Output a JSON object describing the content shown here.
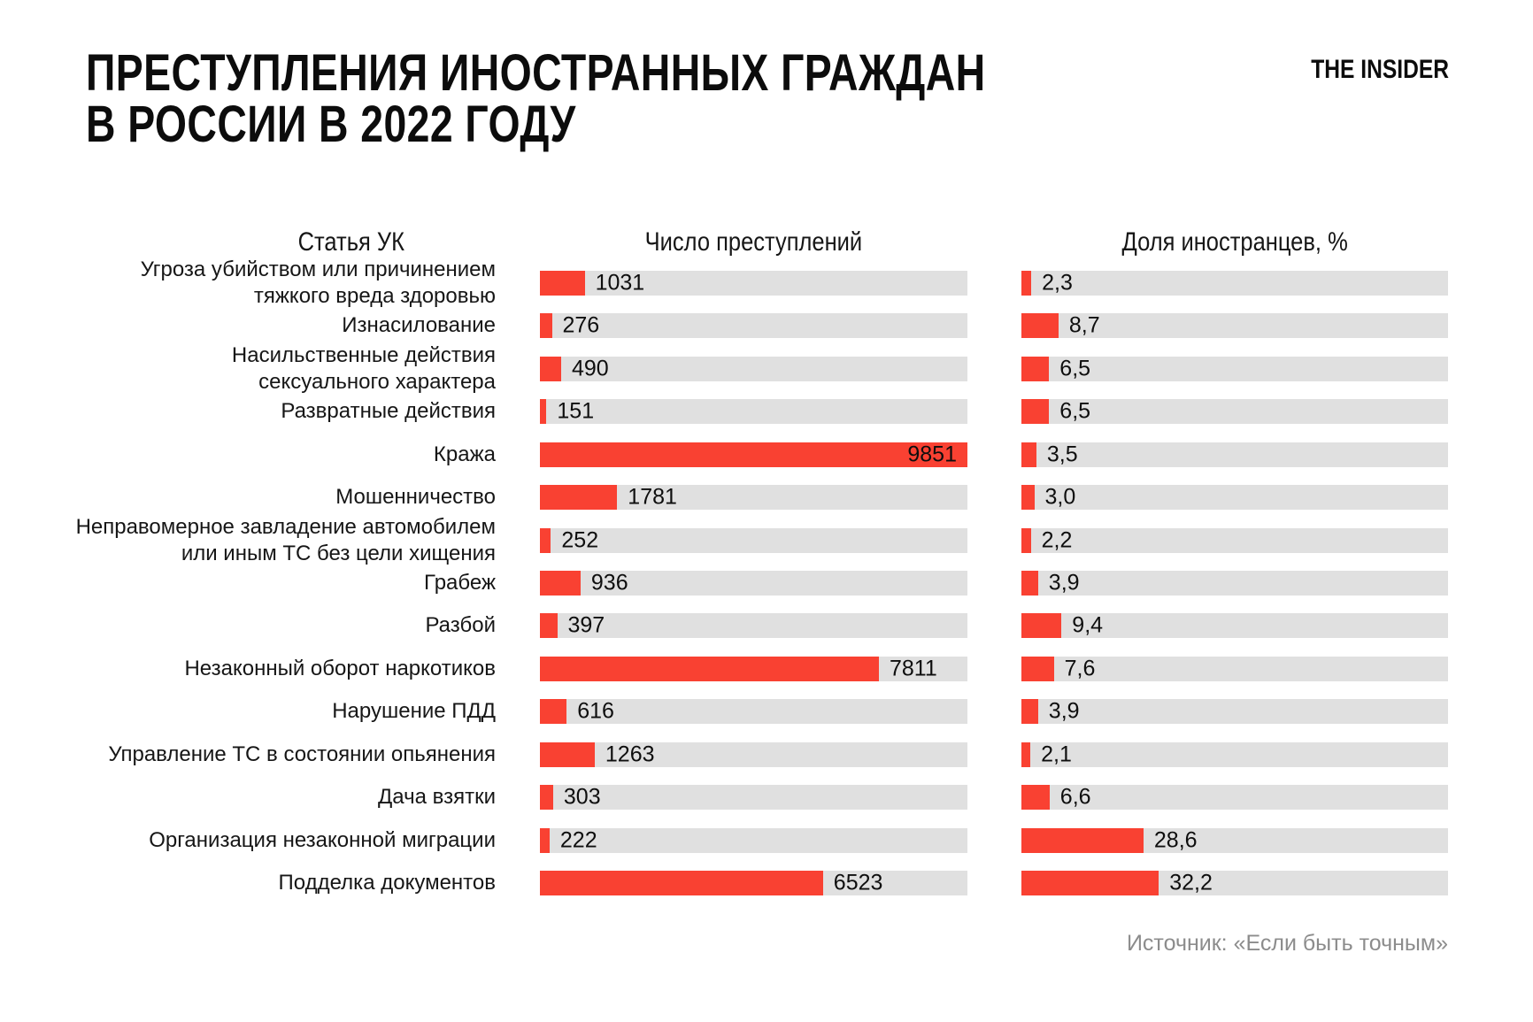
{
  "page": {
    "title_line1": "ПРЕСТУПЛЕНИЯ ИНОСТРАННЫХ ГРАЖДАН",
    "title_line2": "В РОССИИ В 2022 ГОДУ",
    "logo": "THE INSIDER",
    "source": "Источник: «Если быть точным»"
  },
  "columns": {
    "article": "Статья УК",
    "count": "Число преступлений",
    "share": "Доля иностранцев, %"
  },
  "colors": {
    "bar_red": "#F94132",
    "track_gray": "#E0E0E0",
    "text_black": "#0e0e0e",
    "source_gray": "#8C8C8C"
  },
  "chart_data": {
    "type": "bar",
    "orientation": "horizontal",
    "title": "Преступления иностранных граждан в России в 2022 году",
    "legend": false,
    "grid": false,
    "categories": [
      "Угроза убийством или причинением\nтяжкого вреда здоровью",
      "Изнасилование",
      "Насильственные действия\nсексуального характера",
      "Развратные действия",
      "Кража",
      "Мошенничество",
      "Неправомерное завладение автомобилем\nили иным ТС без цели хищения",
      "Грабеж",
      "Разбой",
      "Незаконный оборот наркотиков",
      "Нарушение ПДД",
      "Управление ТС в состоянии опьянения",
      "Дача взятки",
      "Организация незаконной миграции",
      "Подделка документов"
    ],
    "series": [
      {
        "name": "Число преступлений",
        "values": [
          1031,
          276,
          490,
          151,
          9851,
          1781,
          252,
          936,
          397,
          7811,
          616,
          1263,
          303,
          222,
          6523
        ],
        "axis_max": 9851
      },
      {
        "name": "Доля иностранцев, %",
        "values": [
          2.3,
          8.7,
          6.5,
          6.5,
          3.5,
          3.0,
          2.2,
          3.9,
          9.4,
          7.6,
          3.9,
          2.1,
          6.6,
          28.6,
          32.2
        ],
        "axis_max": 100,
        "value_format": "comma_decimal"
      }
    ]
  }
}
